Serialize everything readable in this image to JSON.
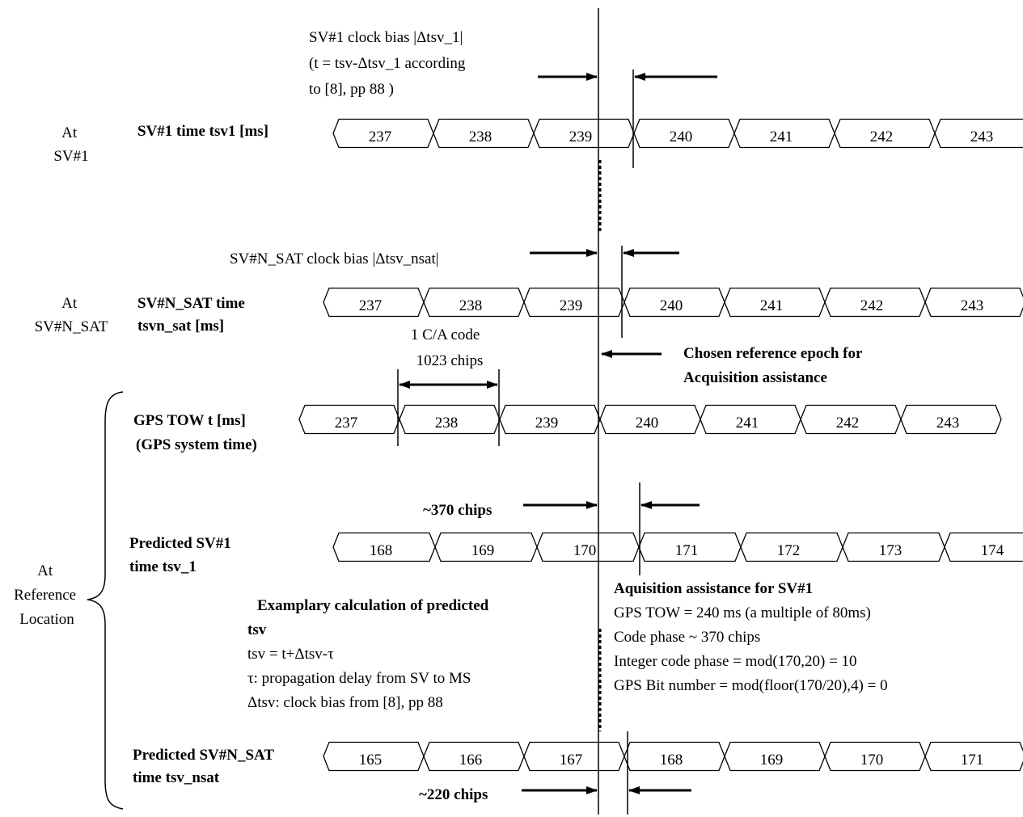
{
  "annotations": {
    "sv1_bias": [
      "SV#1 clock bias |Δtsv_1|",
      "(t = tsv-Δtsv_1 according",
      "to [8], pp 88 )"
    ],
    "svn_bias": "SV#N_SAT clock bias |Δtsv_nsat|",
    "ca_code": [
      "1 C/A code",
      "1023 chips"
    ],
    "chosen_epoch": [
      "Chosen reference epoch for",
      "Acquisition assistance"
    ],
    "chips_370": "~370 chips",
    "chips_220": "~220 chips"
  },
  "side_labels": {
    "at_sv1": [
      "At",
      "SV#1"
    ],
    "at_svn": [
      "At",
      "SV#N_SAT"
    ],
    "at_ref": [
      "At",
      "Reference",
      "Location"
    ]
  },
  "rows": [
    {
      "label": [
        "SV#1 time tsv1 [ms]"
      ],
      "cells": [
        "237",
        "238",
        "239",
        "240",
        "241",
        "242",
        "243"
      ]
    },
    {
      "label": [
        "SV#N_SAT  time",
        "tsvn_sat  [ms]"
      ],
      "cells": [
        "237",
        "238",
        "239",
        "240",
        "241",
        "242",
        "243"
      ]
    },
    {
      "label": [
        "GPS TOW t [ms]",
        "(GPS system time)"
      ],
      "cells": [
        "237",
        "238",
        "239",
        "240",
        "241",
        "242",
        "243"
      ]
    },
    {
      "label": [
        "Predicted SV#1",
        "time tsv_1"
      ],
      "cells": [
        "168",
        "169",
        "170",
        "171",
        "172",
        "173",
        "174"
      ]
    },
    {
      "label": [
        "Predicted SV#N_SAT",
        "time tsv_nsat"
      ],
      "cells": [
        "165",
        "166",
        "167",
        "168",
        "169",
        "170",
        "171"
      ]
    }
  ],
  "example_calc": {
    "title": [
      "Examplary calculation of predicted",
      "tsv"
    ],
    "lines": [
      "tsv = t+Δtsv-τ",
      "τ: propagation delay from SV to MS",
      "Δtsv: clock bias from [8], pp 88"
    ]
  },
  "acq_assist": {
    "title": "Aquisition assistance for SV#1",
    "lines": [
      "GPS TOW = 240 ms (a multiple of 80ms)",
      "Code phase  ~ 370 chips",
      "Integer code phase = mod(170,20) = 10",
      "GPS Bit number = mod(floor(170/20),4) = 0"
    ]
  }
}
